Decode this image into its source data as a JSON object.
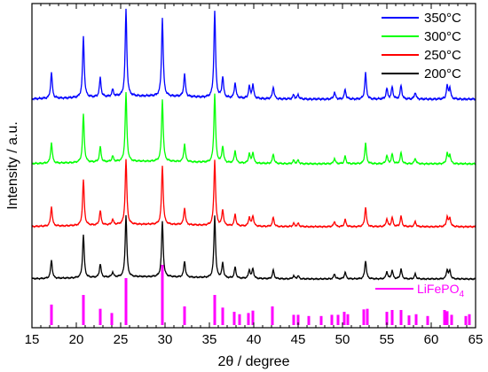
{
  "chart_data": {
    "type": "line",
    "xlabel": "2θ / degree",
    "ylabel": "Intensity / a.u.",
    "xlim": [
      15,
      65
    ],
    "x_ticks": [
      15,
      20,
      25,
      30,
      35,
      40,
      45,
      50,
      55,
      60,
      65
    ],
    "y_ticks_shown": false,
    "grid": false,
    "legend_position": "top-right",
    "series": [
      {
        "name": "350°C",
        "color": "#0000ff",
        "order": 3
      },
      {
        "name": "300°C",
        "color": "#00ff00",
        "order": 2
      },
      {
        "name": "250°C",
        "color": "#ff0000",
        "order": 1
      },
      {
        "name": "200°C",
        "color": "#000000",
        "order": 0
      }
    ],
    "peaks": [
      {
        "x": 17.2,
        "h": 0.3
      },
      {
        "x": 20.8,
        "h": 0.7
      },
      {
        "x": 22.7,
        "h": 0.22
      },
      {
        "x": 24.1,
        "h": 0.08
      },
      {
        "x": 25.6,
        "h": 1.0
      },
      {
        "x": 29.7,
        "h": 0.9
      },
      {
        "x": 32.2,
        "h": 0.26
      },
      {
        "x": 35.6,
        "h": 1.0
      },
      {
        "x": 36.5,
        "h": 0.24
      },
      {
        "x": 37.9,
        "h": 0.18
      },
      {
        "x": 39.5,
        "h": 0.14
      },
      {
        "x": 39.9,
        "h": 0.16
      },
      {
        "x": 42.2,
        "h": 0.14
      },
      {
        "x": 44.5,
        "h": 0.05
      },
      {
        "x": 45.0,
        "h": 0.05
      },
      {
        "x": 49.1,
        "h": 0.08
      },
      {
        "x": 50.3,
        "h": 0.11
      },
      {
        "x": 52.6,
        "h": 0.3
      },
      {
        "x": 55.0,
        "h": 0.12
      },
      {
        "x": 55.6,
        "h": 0.14
      },
      {
        "x": 56.6,
        "h": 0.16
      },
      {
        "x": 58.2,
        "h": 0.08
      },
      {
        "x": 61.8,
        "h": 0.15
      },
      {
        "x": 62.1,
        "h": 0.13
      }
    ],
    "reference": {
      "name": "LiFePO",
      "subscript": "4",
      "color": "#ff00ff",
      "lines": [
        {
          "x": 17.2,
          "h": 0.34
        },
        {
          "x": 20.8,
          "h": 0.5
        },
        {
          "x": 22.7,
          "h": 0.27
        },
        {
          "x": 24.0,
          "h": 0.2
        },
        {
          "x": 25.6,
          "h": 0.78
        },
        {
          "x": 29.7,
          "h": 1.0
        },
        {
          "x": 32.2,
          "h": 0.31
        },
        {
          "x": 35.6,
          "h": 0.5
        },
        {
          "x": 36.5,
          "h": 0.29
        },
        {
          "x": 37.8,
          "h": 0.22
        },
        {
          "x": 38.4,
          "h": 0.18
        },
        {
          "x": 39.4,
          "h": 0.2
        },
        {
          "x": 39.9,
          "h": 0.24
        },
        {
          "x": 42.1,
          "h": 0.31
        },
        {
          "x": 44.5,
          "h": 0.17
        },
        {
          "x": 45.0,
          "h": 0.17
        },
        {
          "x": 46.2,
          "h": 0.15
        },
        {
          "x": 47.6,
          "h": 0.15
        },
        {
          "x": 48.8,
          "h": 0.17
        },
        {
          "x": 49.5,
          "h": 0.17
        },
        {
          "x": 50.2,
          "h": 0.22
        },
        {
          "x": 50.6,
          "h": 0.18
        },
        {
          "x": 52.4,
          "h": 0.26
        },
        {
          "x": 52.8,
          "h": 0.27
        },
        {
          "x": 55.0,
          "h": 0.22
        },
        {
          "x": 55.6,
          "h": 0.25
        },
        {
          "x": 56.6,
          "h": 0.25
        },
        {
          "x": 57.5,
          "h": 0.16
        },
        {
          "x": 58.3,
          "h": 0.18
        },
        {
          "x": 59.6,
          "h": 0.15
        },
        {
          "x": 61.5,
          "h": 0.25
        },
        {
          "x": 61.8,
          "h": 0.23
        },
        {
          "x": 62.3,
          "h": 0.17
        },
        {
          "x": 63.9,
          "h": 0.15
        },
        {
          "x": 64.3,
          "h": 0.18
        }
      ]
    }
  }
}
